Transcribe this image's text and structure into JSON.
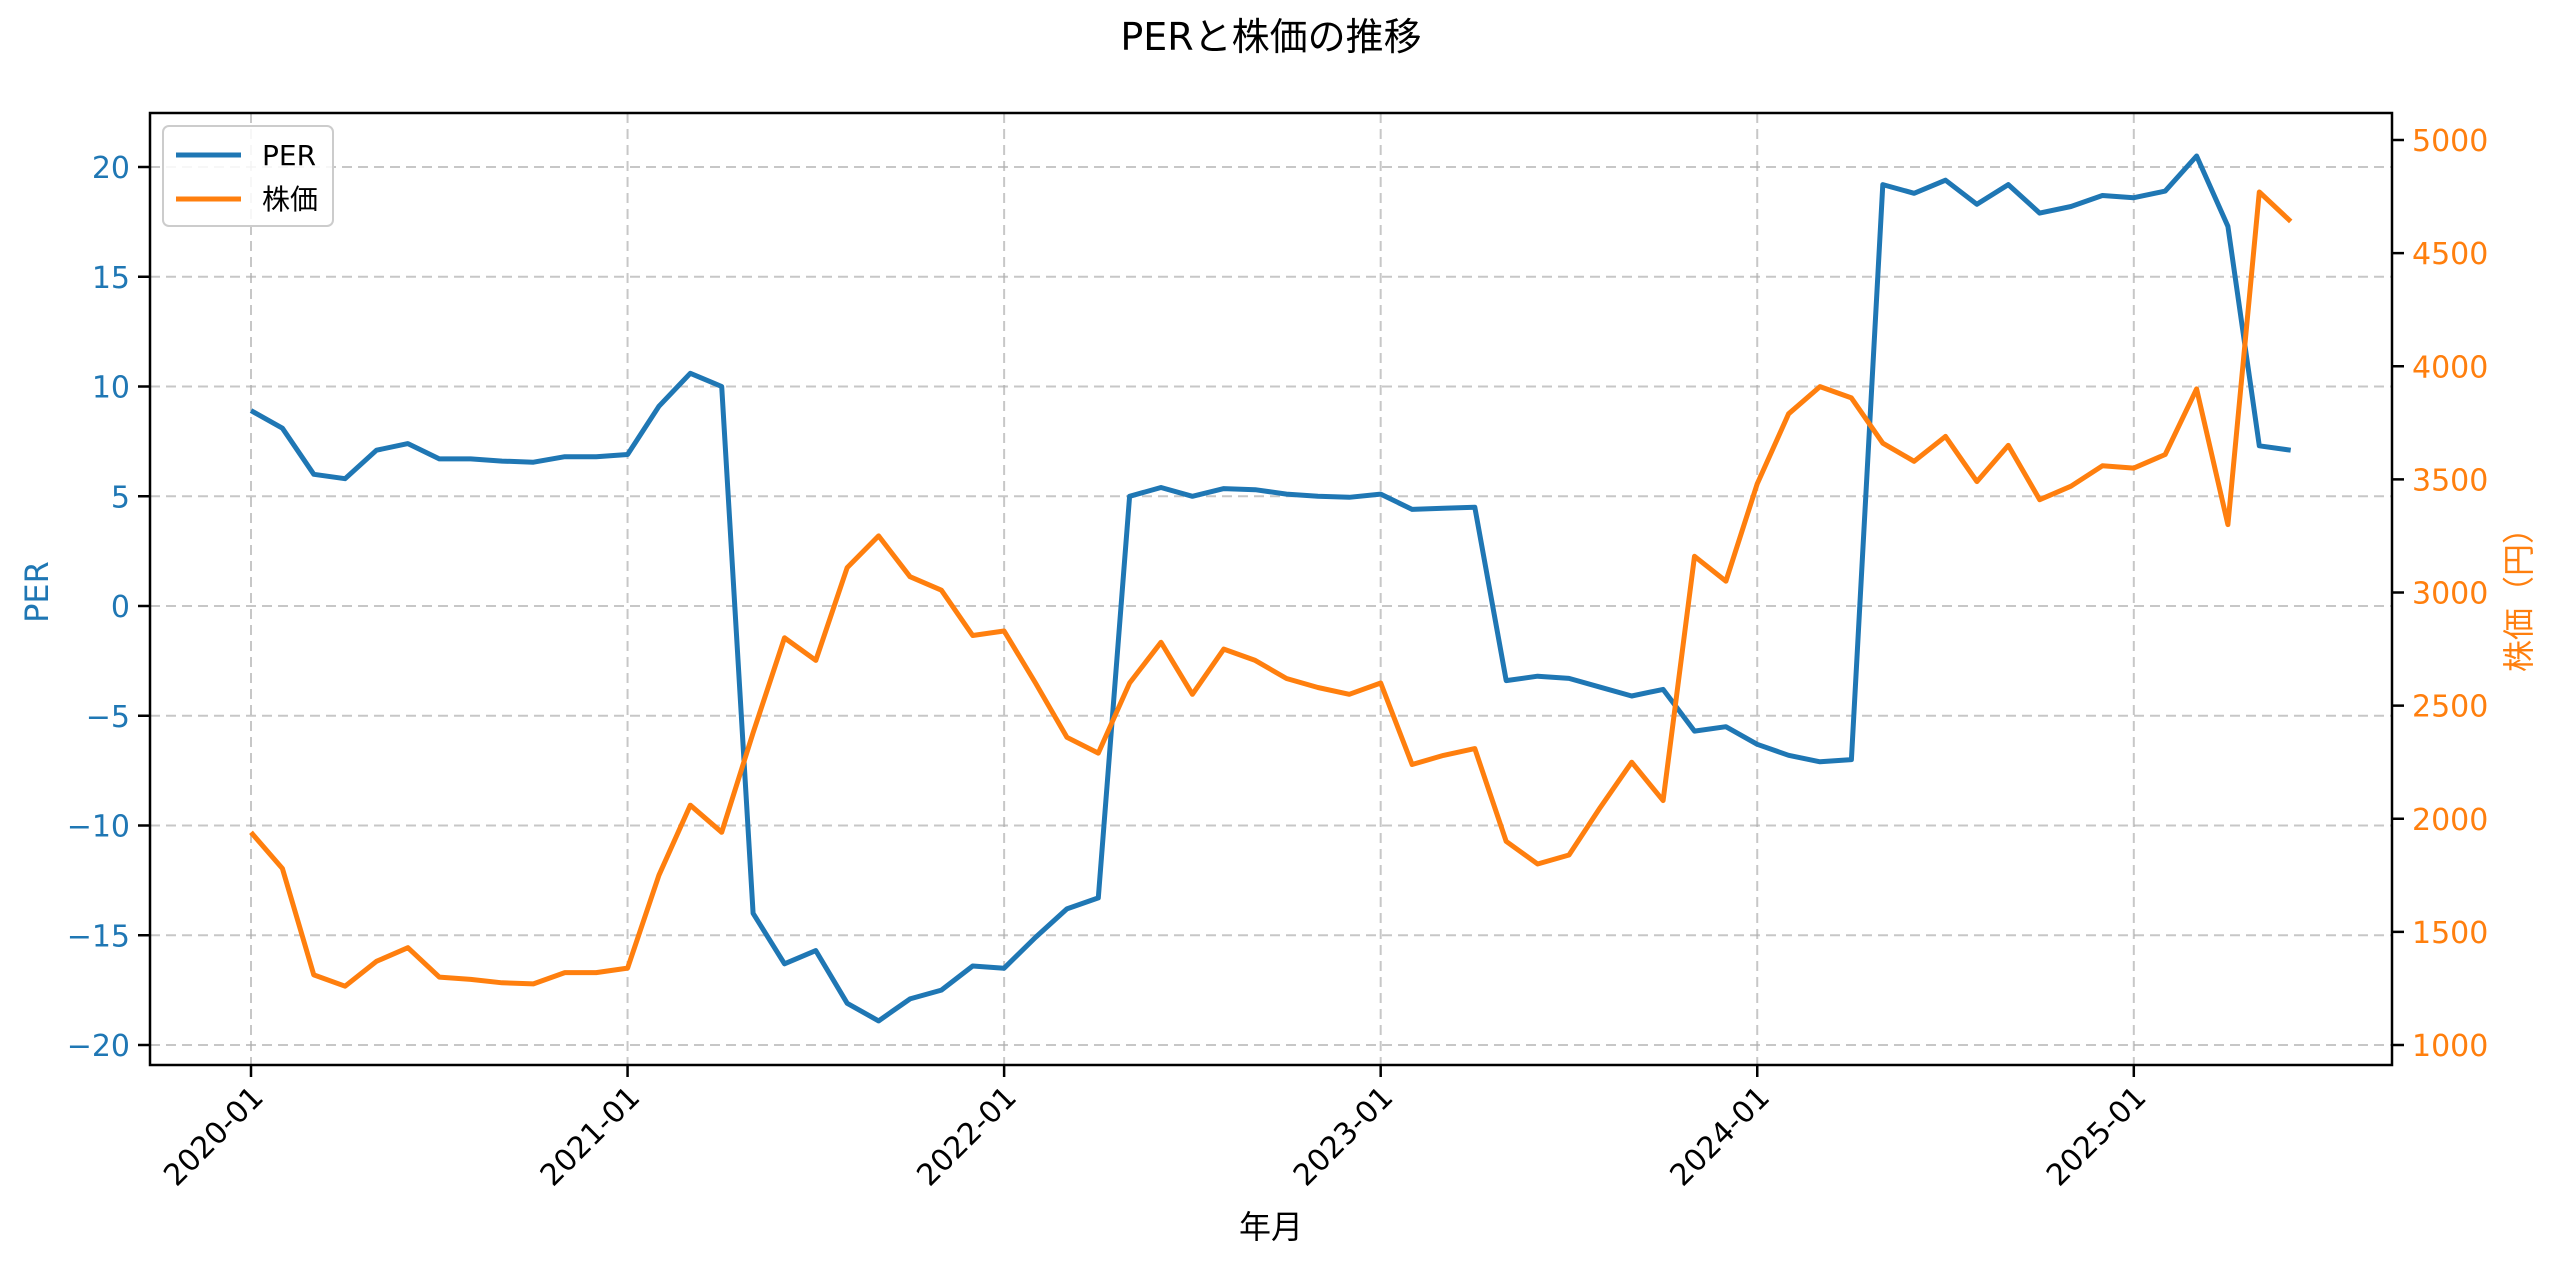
{
  "colors": {
    "per": "#1f77b4",
    "price": "#ff7f0e",
    "axis": "#000000",
    "grid": "#b0b0b0"
  },
  "chart_data": {
    "type": "line",
    "title": "PERと株価の推移",
    "xlabel": "年月",
    "ylabel": "PER",
    "ylabel_right": "株価（円）",
    "legend": [
      "PER",
      "株価"
    ],
    "legend_position": "upper left",
    "grid": true,
    "ylim": [
      -21,
      22
    ],
    "ylim_right": [
      950,
      5100
    ],
    "x_ticks": [
      "2020-01",
      "2021-01",
      "2022-01",
      "2023-01",
      "2024-01",
      "2025-01"
    ],
    "y_ticks_left": [
      -20,
      -15,
      -10,
      -5,
      0,
      5,
      10,
      15,
      20
    ],
    "y_ticks_right": [
      1000,
      1500,
      2000,
      2500,
      3000,
      3500,
      4000,
      4500,
      5000
    ],
    "x": [
      "2020-01",
      "2020-02",
      "2020-03",
      "2020-04",
      "2020-05",
      "2020-06",
      "2020-07",
      "2020-08",
      "2020-09",
      "2020-10",
      "2020-11",
      "2020-12",
      "2021-01",
      "2021-02",
      "2021-03",
      "2021-04",
      "2021-05",
      "2021-06",
      "2021-07",
      "2021-08",
      "2021-09",
      "2021-10",
      "2021-11",
      "2021-12",
      "2022-01",
      "2022-02",
      "2022-03",
      "2022-04",
      "2022-05",
      "2022-06",
      "2022-07",
      "2022-08",
      "2022-09",
      "2022-10",
      "2022-11",
      "2022-12",
      "2023-01",
      "2023-02",
      "2023-03",
      "2023-04",
      "2023-05",
      "2023-06",
      "2023-07",
      "2023-08",
      "2023-09",
      "2023-10",
      "2023-11",
      "2023-12",
      "2024-01",
      "2024-02",
      "2024-03",
      "2024-04",
      "2024-05",
      "2024-06",
      "2024-07",
      "2024-08",
      "2024-09",
      "2024-10",
      "2024-11",
      "2024-12",
      "2025-01",
      "2025-02",
      "2025-03",
      "2025-04",
      "2025-05",
      "2025-06"
    ],
    "series": [
      {
        "name": "PER",
        "axis": "left",
        "values": [
          8.9,
          8.1,
          6.0,
          5.8,
          7.1,
          7.4,
          6.7,
          6.7,
          6.6,
          6.55,
          6.8,
          6.8,
          6.9,
          9.1,
          10.6,
          10.0,
          -14.0,
          -16.3,
          -15.7,
          -18.1,
          -18.9,
          -17.9,
          -17.5,
          -16.4,
          -16.5,
          -15.1,
          -13.8,
          -13.3,
          5.0,
          5.4,
          5.0,
          5.35,
          5.3,
          5.1,
          5.0,
          4.95,
          5.1,
          4.4,
          4.45,
          4.5,
          -3.4,
          -3.2,
          -3.3,
          -3.7,
          -4.1,
          -3.8,
          -5.7,
          -5.5,
          -6.3,
          -6.8,
          -7.1,
          -7.0,
          19.2,
          18.8,
          19.4,
          18.3,
          19.2,
          17.9,
          18.2,
          18.7,
          18.6,
          18.9,
          20.5,
          17.3,
          7.3,
          7.1
        ]
      },
      {
        "name": "株価",
        "axis": "right",
        "values": [
          1940,
          1780,
          1310,
          1260,
          1370,
          1430,
          1300,
          1290,
          1275,
          1270,
          1320,
          1320,
          1340,
          1750,
          2060,
          1940,
          2380,
          2800,
          2700,
          3110,
          3250,
          3070,
          3010,
          2810,
          2830,
          2600,
          2360,
          2290,
          2600,
          2780,
          2550,
          2750,
          2700,
          2620,
          2580,
          2550,
          2600,
          2240,
          2280,
          2310,
          1900,
          1800,
          1840,
          2050,
          2250,
          2080,
          3160,
          3050,
          3480,
          3790,
          3910,
          3860,
          3660,
          3580,
          3690,
          3490,
          3650,
          3410,
          3470,
          3560,
          3550,
          3610,
          3900,
          3300,
          4770,
          4640
        ]
      }
    ]
  }
}
